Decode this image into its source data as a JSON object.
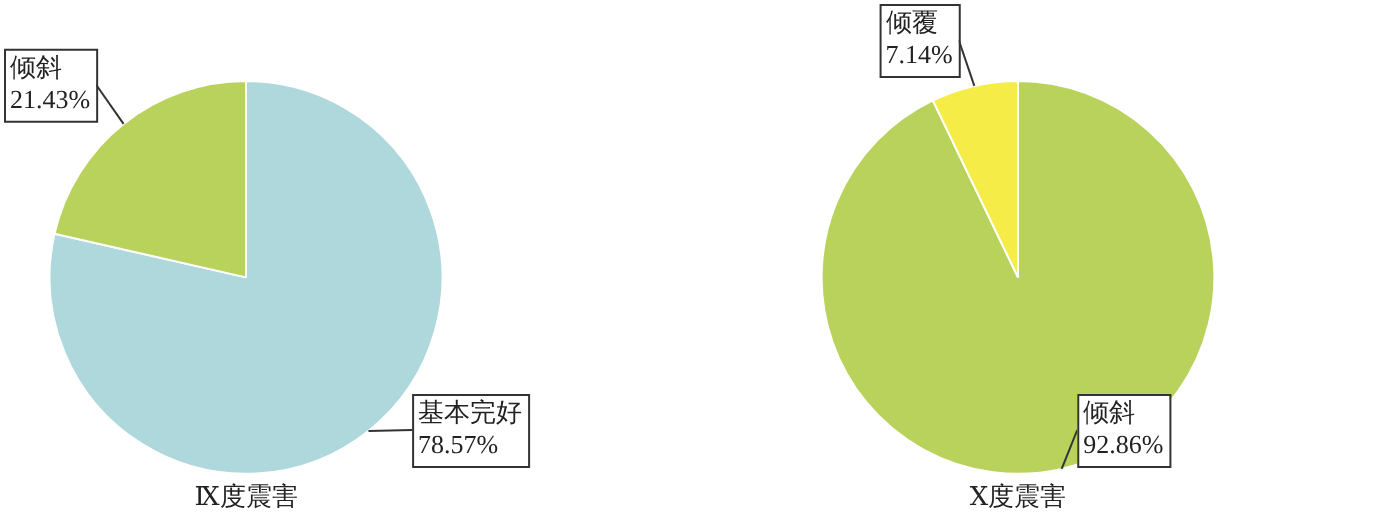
{
  "chart_data": [
    {
      "type": "pie",
      "title": "Ⅸ度震害",
      "categories": [
        "基本完好",
        "倾斜"
      ],
      "values": [
        78.57,
        21.43
      ],
      "colors": [
        "#aed8dc",
        "#b8d25c"
      ],
      "value_labels": [
        "78.57%",
        "21.43%"
      ]
    },
    {
      "type": "pie",
      "title": "Ⅹ度震害",
      "categories": [
        "倾斜",
        "倾覆"
      ],
      "values": [
        92.86,
        7.14
      ],
      "colors": [
        "#b8d25c",
        "#f5ec48"
      ],
      "value_labels": [
        "92.86%",
        "7.14%"
      ]
    }
  ]
}
